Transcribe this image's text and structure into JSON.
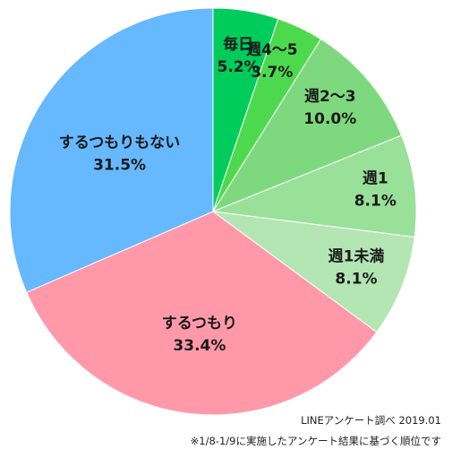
{
  "chart_data": {
    "type": "pie",
    "categories": [
      "毎日",
      "週4～5",
      "週2～3",
      "週1",
      "週1未満",
      "するつもり",
      "するつもりもない"
    ],
    "values": [
      5.2,
      3.7,
      10.0,
      8.1,
      8.1,
      33.4,
      31.5
    ],
    "value_labels": [
      "5.2%",
      "3.7%",
      "10.0%",
      "8.1%",
      "8.1%",
      "33.4%",
      "31.5%"
    ],
    "colors": [
      "#00cc5c",
      "#4dd94d",
      "#7ed97e",
      "#99e099",
      "#b3e6b3",
      "#ff99aa",
      "#66b8ff"
    ],
    "start_angle": "12 o'clock",
    "direction": "clockwise",
    "legend": "none"
  },
  "notes": {
    "source": "LINEアンケート調べ 2019.01",
    "footnote": "※1/8-1/9に実施したアンケート結果に基づく順位です"
  }
}
